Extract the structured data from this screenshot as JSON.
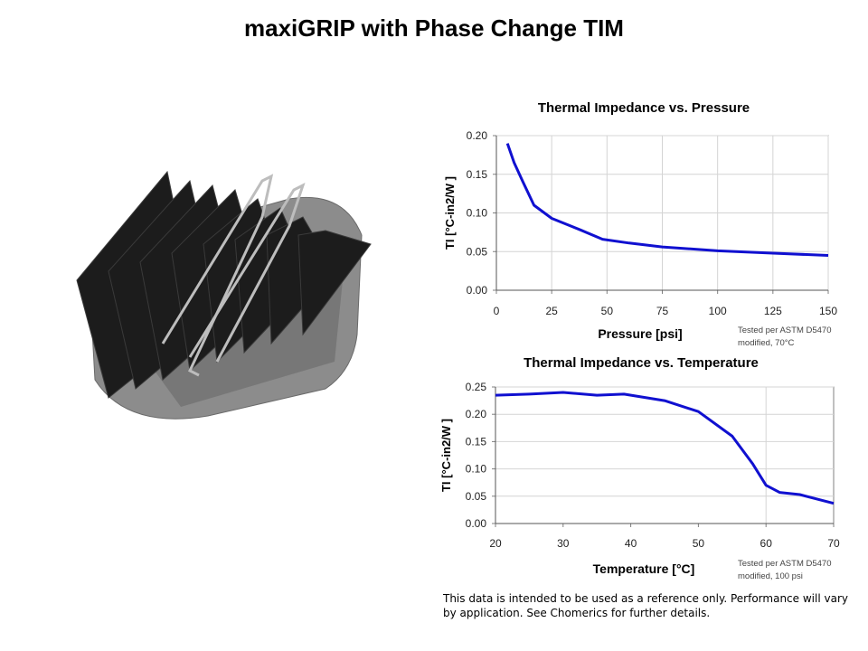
{
  "slide": {
    "title": "maxiGRIP with Phase Change TIM",
    "disclaimer": "This data is intended to be used as a reference only. Performance will vary by application. See Chomerics  for further details."
  },
  "colors": {
    "line": "#1010d0",
    "grid": "#d4d4d4",
    "axis": "#808080"
  },
  "chart_data": [
    {
      "type": "line",
      "title": "Thermal Impedance vs. Pressure",
      "xlabel": "Pressure [psi]",
      "ylabel": "TI [°C-in2/W ]",
      "note": [
        "Tested per ASTM D5470",
        "modified, 70°C"
      ],
      "xlim": [
        0,
        150
      ],
      "ylim": [
        0,
        0.2
      ],
      "xticks": [
        0,
        25,
        50,
        75,
        100,
        125,
        150
      ],
      "yticks": [
        "0.00",
        "0.05",
        "0.10",
        "0.15",
        "0.20"
      ],
      "series": [
        {
          "name": "TI",
          "x": [
            5,
            8,
            12,
            17,
            25,
            38,
            48,
            60,
            75,
            100,
            125,
            150
          ],
          "y": [
            0.19,
            0.165,
            0.14,
            0.11,
            0.093,
            0.078,
            0.066,
            0.061,
            0.056,
            0.051,
            0.048,
            0.045
          ]
        }
      ]
    },
    {
      "type": "line",
      "title": "Thermal Impedance vs. Temperature",
      "xlabel": "Temperature [°C]",
      "ylabel": "TI [°C-in2/W ]",
      "note": [
        "Tested per ASTM D5470",
        "modified, 100 psi"
      ],
      "xlim": [
        20,
        70
      ],
      "ylim": [
        0,
        0.25
      ],
      "xticks": [
        20,
        30,
        40,
        50,
        60,
        70
      ],
      "yticks": [
        "0.00",
        "0.05",
        "0.10",
        "0.15",
        "0.20",
        "0.25"
      ],
      "series": [
        {
          "name": "TI",
          "x": [
            20,
            25,
            30,
            35,
            39,
            45,
            50,
            55,
            58,
            60,
            62,
            65,
            70
          ],
          "y": [
            0.235,
            0.237,
            0.24,
            0.235,
            0.237,
            0.225,
            0.205,
            0.16,
            0.11,
            0.07,
            0.057,
            0.053,
            0.037
          ]
        }
      ]
    }
  ]
}
